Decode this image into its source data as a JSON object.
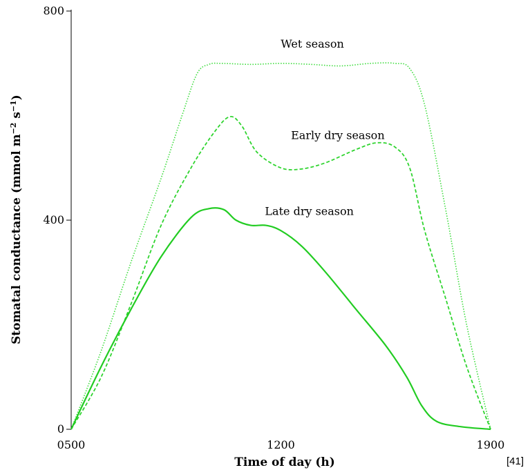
{
  "chart_data": {
    "type": "line",
    "xlabel": "Time of day (h)",
    "ylabel": "Stomatal conductance (mmol m",
    "ylabel_sup1": "−2",
    "ylabel_mid": " s",
    "ylabel_sup2": "−1",
    "ylabel_end": ")",
    "xlim": [
      5,
      19
    ],
    "ylim": [
      0,
      800
    ],
    "x_ticks": [
      {
        "value": 5,
        "label": "0500"
      },
      {
        "value": 12,
        "label": "1200"
      },
      {
        "value": 19,
        "label": "1900"
      }
    ],
    "y_ticks": [
      {
        "value": 0,
        "label": "0"
      },
      {
        "value": 400,
        "label": "400"
      },
      {
        "value": 800,
        "label": "800"
      }
    ],
    "series": [
      {
        "name": "Wet season",
        "style": "dotted",
        "color": "#3cdc3c",
        "points": [
          [
            5,
            0
          ],
          [
            6,
            150
          ],
          [
            7,
            320
          ],
          [
            8,
            480
          ],
          [
            8.7,
            600
          ],
          [
            9.2,
            680
          ],
          [
            9.6,
            698
          ],
          [
            10,
            700
          ],
          [
            11,
            698
          ],
          [
            12,
            700
          ],
          [
            13,
            698
          ],
          [
            14,
            695
          ],
          [
            15,
            700
          ],
          [
            15.8,
            700
          ],
          [
            16.3,
            690
          ],
          [
            16.8,
            620
          ],
          [
            17.5,
            420
          ],
          [
            18.2,
            200
          ],
          [
            19,
            0
          ]
        ]
      },
      {
        "name": "Early dry season",
        "style": "dashed",
        "color": "#2fd42f",
        "points": [
          [
            5,
            0
          ],
          [
            6,
            100
          ],
          [
            7,
            240
          ],
          [
            8,
            390
          ],
          [
            9,
            500
          ],
          [
            9.8,
            570
          ],
          [
            10.3,
            598
          ],
          [
            10.7,
            580
          ],
          [
            11.2,
            530
          ],
          [
            12,
            500
          ],
          [
            12.7,
            498
          ],
          [
            13.5,
            510
          ],
          [
            14.5,
            535
          ],
          [
            15.2,
            548
          ],
          [
            15.8,
            540
          ],
          [
            16.3,
            500
          ],
          [
            16.8,
            380
          ],
          [
            17.5,
            250
          ],
          [
            18.2,
            120
          ],
          [
            19,
            0
          ]
        ]
      },
      {
        "name": "Late dry season",
        "style": "solid",
        "color": "#22cc22",
        "points": [
          [
            5,
            0
          ],
          [
            6,
            120
          ],
          [
            7,
            230
          ],
          [
            8,
            330
          ],
          [
            9,
            405
          ],
          [
            9.6,
            422
          ],
          [
            10.1,
            420
          ],
          [
            10.5,
            400
          ],
          [
            11,
            390
          ],
          [
            11.5,
            390
          ],
          [
            12,
            380
          ],
          [
            12.7,
            350
          ],
          [
            13.5,
            300
          ],
          [
            14.5,
            230
          ],
          [
            15.5,
            160
          ],
          [
            16.2,
            100
          ],
          [
            16.7,
            45
          ],
          [
            17.2,
            15
          ],
          [
            18,
            5
          ],
          [
            19,
            0
          ]
        ]
      }
    ],
    "annotations": [
      {
        "text": "Wet season",
        "series": "Wet season",
        "x": 13.05,
        "y": 730
      },
      {
        "text": "Early dry season",
        "series": "Early dry season",
        "x": 13.9,
        "y": 555
      },
      {
        "text": "Late dry season",
        "series": "Late dry season",
        "x": 12.95,
        "y": 410
      }
    ],
    "grid": false,
    "legend": "none"
  },
  "citation": "[41]"
}
